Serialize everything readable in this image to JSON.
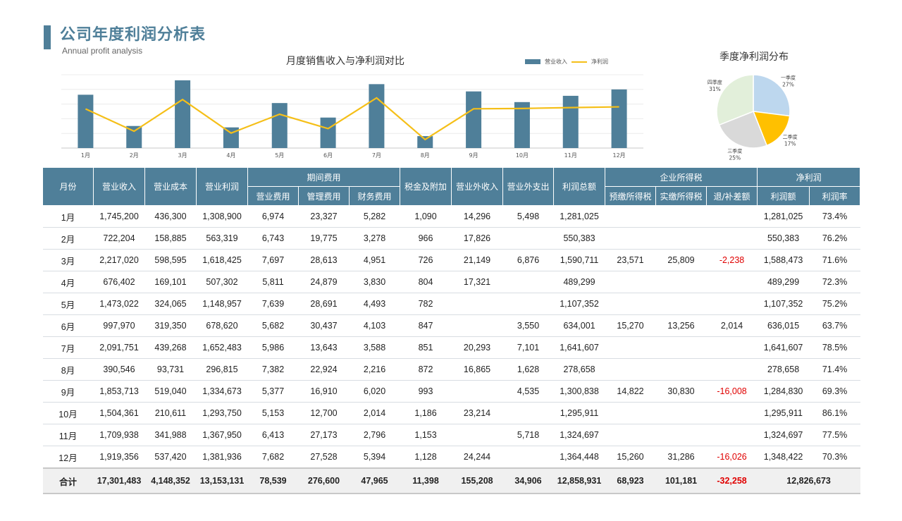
{
  "header": {
    "title": "公司年度利润分析表",
    "subtitle": "Annual profit analysis"
  },
  "colors": {
    "accent": "#4f7f99",
    "line": "#f5bf18",
    "negative": "#e00000"
  },
  "chart_data": [
    {
      "type": "bar",
      "title": "月度销售收入与净利润对比",
      "categories": [
        "1月",
        "2月",
        "3月",
        "4月",
        "5月",
        "6月",
        "7月",
        "8月",
        "9月",
        "10月",
        "11月",
        "12月"
      ],
      "series": [
        {
          "name": "营业收入",
          "type": "bar",
          "values": [
            1745200,
            722204,
            2217020,
            676402,
            1473022,
            997970,
            2091751,
            390546,
            1853713,
            1504361,
            1709938,
            1919356
          ]
        },
        {
          "name": "净利润",
          "type": "line",
          "values": [
            1281025,
            550383,
            1588473,
            489299,
            1107352,
            636015,
            1641607,
            278658,
            1284830,
            1295911,
            1324697,
            1348422
          ]
        }
      ],
      "ylim": [
        0,
        2400000
      ],
      "grid": true,
      "legend": "top-right"
    },
    {
      "type": "pie",
      "title": "季度净利润分布",
      "labels": [
        "一季度",
        "二季度",
        "三季度",
        "四季度"
      ],
      "values": [
        27,
        17,
        25,
        31
      ],
      "display": [
        "27%",
        "17%",
        "25%",
        "31%"
      ],
      "colors": [
        "#bdd7ee",
        "#ffc000",
        "#d9d9d9",
        "#e2efda"
      ]
    }
  ],
  "table": {
    "headers": {
      "month": "月份",
      "revenue": "营业收入",
      "cost": "营业成本",
      "op_profit": "营业利润",
      "period_exp": "期间费用",
      "sales_exp": "营业费用",
      "admin_exp": "管理费用",
      "fin_exp": "财务费用",
      "tax": "税金及附加",
      "non_op_income": "营业外收入",
      "non_op_exp": "营业外支出",
      "total_profit": "利润总额",
      "income_tax": "企业所得税",
      "prepaid_tax": "预缴所得税",
      "actual_tax": "实缴所得税",
      "diff": "退/补差额",
      "net_profit": "净利润",
      "net_amount": "利润额",
      "net_rate": "利润率"
    },
    "rows": [
      [
        "1月",
        "1,745,200",
        "436,300",
        "1,308,900",
        "6,974",
        "23,327",
        "5,282",
        "1,090",
        "14,296",
        "5,498",
        "1,281,025",
        "",
        "",
        "",
        "1,281,025",
        "73.4%"
      ],
      [
        "2月",
        "722,204",
        "158,885",
        "563,319",
        "6,743",
        "19,775",
        "3,278",
        "966",
        "17,826",
        "",
        "550,383",
        "",
        "",
        "",
        "550,383",
        "76.2%"
      ],
      [
        "3月",
        "2,217,020",
        "598,595",
        "1,618,425",
        "7,697",
        "28,613",
        "4,951",
        "726",
        "21,149",
        "6,876",
        "1,590,711",
        "23,571",
        "25,809",
        "-2,238",
        "1,588,473",
        "71.6%"
      ],
      [
        "4月",
        "676,402",
        "169,101",
        "507,302",
        "5,811",
        "24,879",
        "3,830",
        "804",
        "17,321",
        "",
        "489,299",
        "",
        "",
        "",
        "489,299",
        "72.3%"
      ],
      [
        "5月",
        "1,473,022",
        "324,065",
        "1,148,957",
        "7,639",
        "28,691",
        "4,493",
        "782",
        "",
        "",
        "1,107,352",
        "",
        "",
        "",
        "1,107,352",
        "75.2%"
      ],
      [
        "6月",
        "997,970",
        "319,350",
        "678,620",
        "5,682",
        "30,437",
        "4,103",
        "847",
        "",
        "3,550",
        "634,001",
        "15,270",
        "13,256",
        "2,014",
        "636,015",
        "63.7%"
      ],
      [
        "7月",
        "2,091,751",
        "439,268",
        "1,652,483",
        "5,986",
        "13,643",
        "3,588",
        "851",
        "20,293",
        "7,101",
        "1,641,607",
        "",
        "",
        "",
        "1,641,607",
        "78.5%"
      ],
      [
        "8月",
        "390,546",
        "93,731",
        "296,815",
        "7,382",
        "22,924",
        "2,216",
        "872",
        "16,865",
        "1,628",
        "278,658",
        "",
        "",
        "",
        "278,658",
        "71.4%"
      ],
      [
        "9月",
        "1,853,713",
        "519,040",
        "1,334,673",
        "5,377",
        "16,910",
        "6,020",
        "993",
        "",
        "4,535",
        "1,300,838",
        "14,822",
        "30,830",
        "-16,008",
        "1,284,830",
        "69.3%"
      ],
      [
        "10月",
        "1,504,361",
        "210,611",
        "1,293,750",
        "5,153",
        "12,700",
        "2,014",
        "1,186",
        "23,214",
        "",
        "1,295,911",
        "",
        "",
        "",
        "1,295,911",
        "86.1%"
      ],
      [
        "11月",
        "1,709,938",
        "341,988",
        "1,367,950",
        "6,413",
        "27,173",
        "2,796",
        "1,153",
        "",
        "5,718",
        "1,324,697",
        "",
        "",
        "",
        "1,324,697",
        "77.5%"
      ],
      [
        "12月",
        "1,919,356",
        "537,420",
        "1,381,936",
        "7,682",
        "27,528",
        "5,394",
        "1,128",
        "24,244",
        "",
        "1,364,448",
        "15,260",
        "31,286",
        "-16,026",
        "1,348,422",
        "70.3%"
      ]
    ],
    "total": [
      "合计",
      "17,301,483",
      "4,148,352",
      "13,153,131",
      "78,539",
      "276,600",
      "47,965",
      "11,398",
      "155,208",
      "34,906",
      "12,858,931",
      "68,923",
      "101,181",
      "-32,258",
      "12,826,673"
    ]
  }
}
